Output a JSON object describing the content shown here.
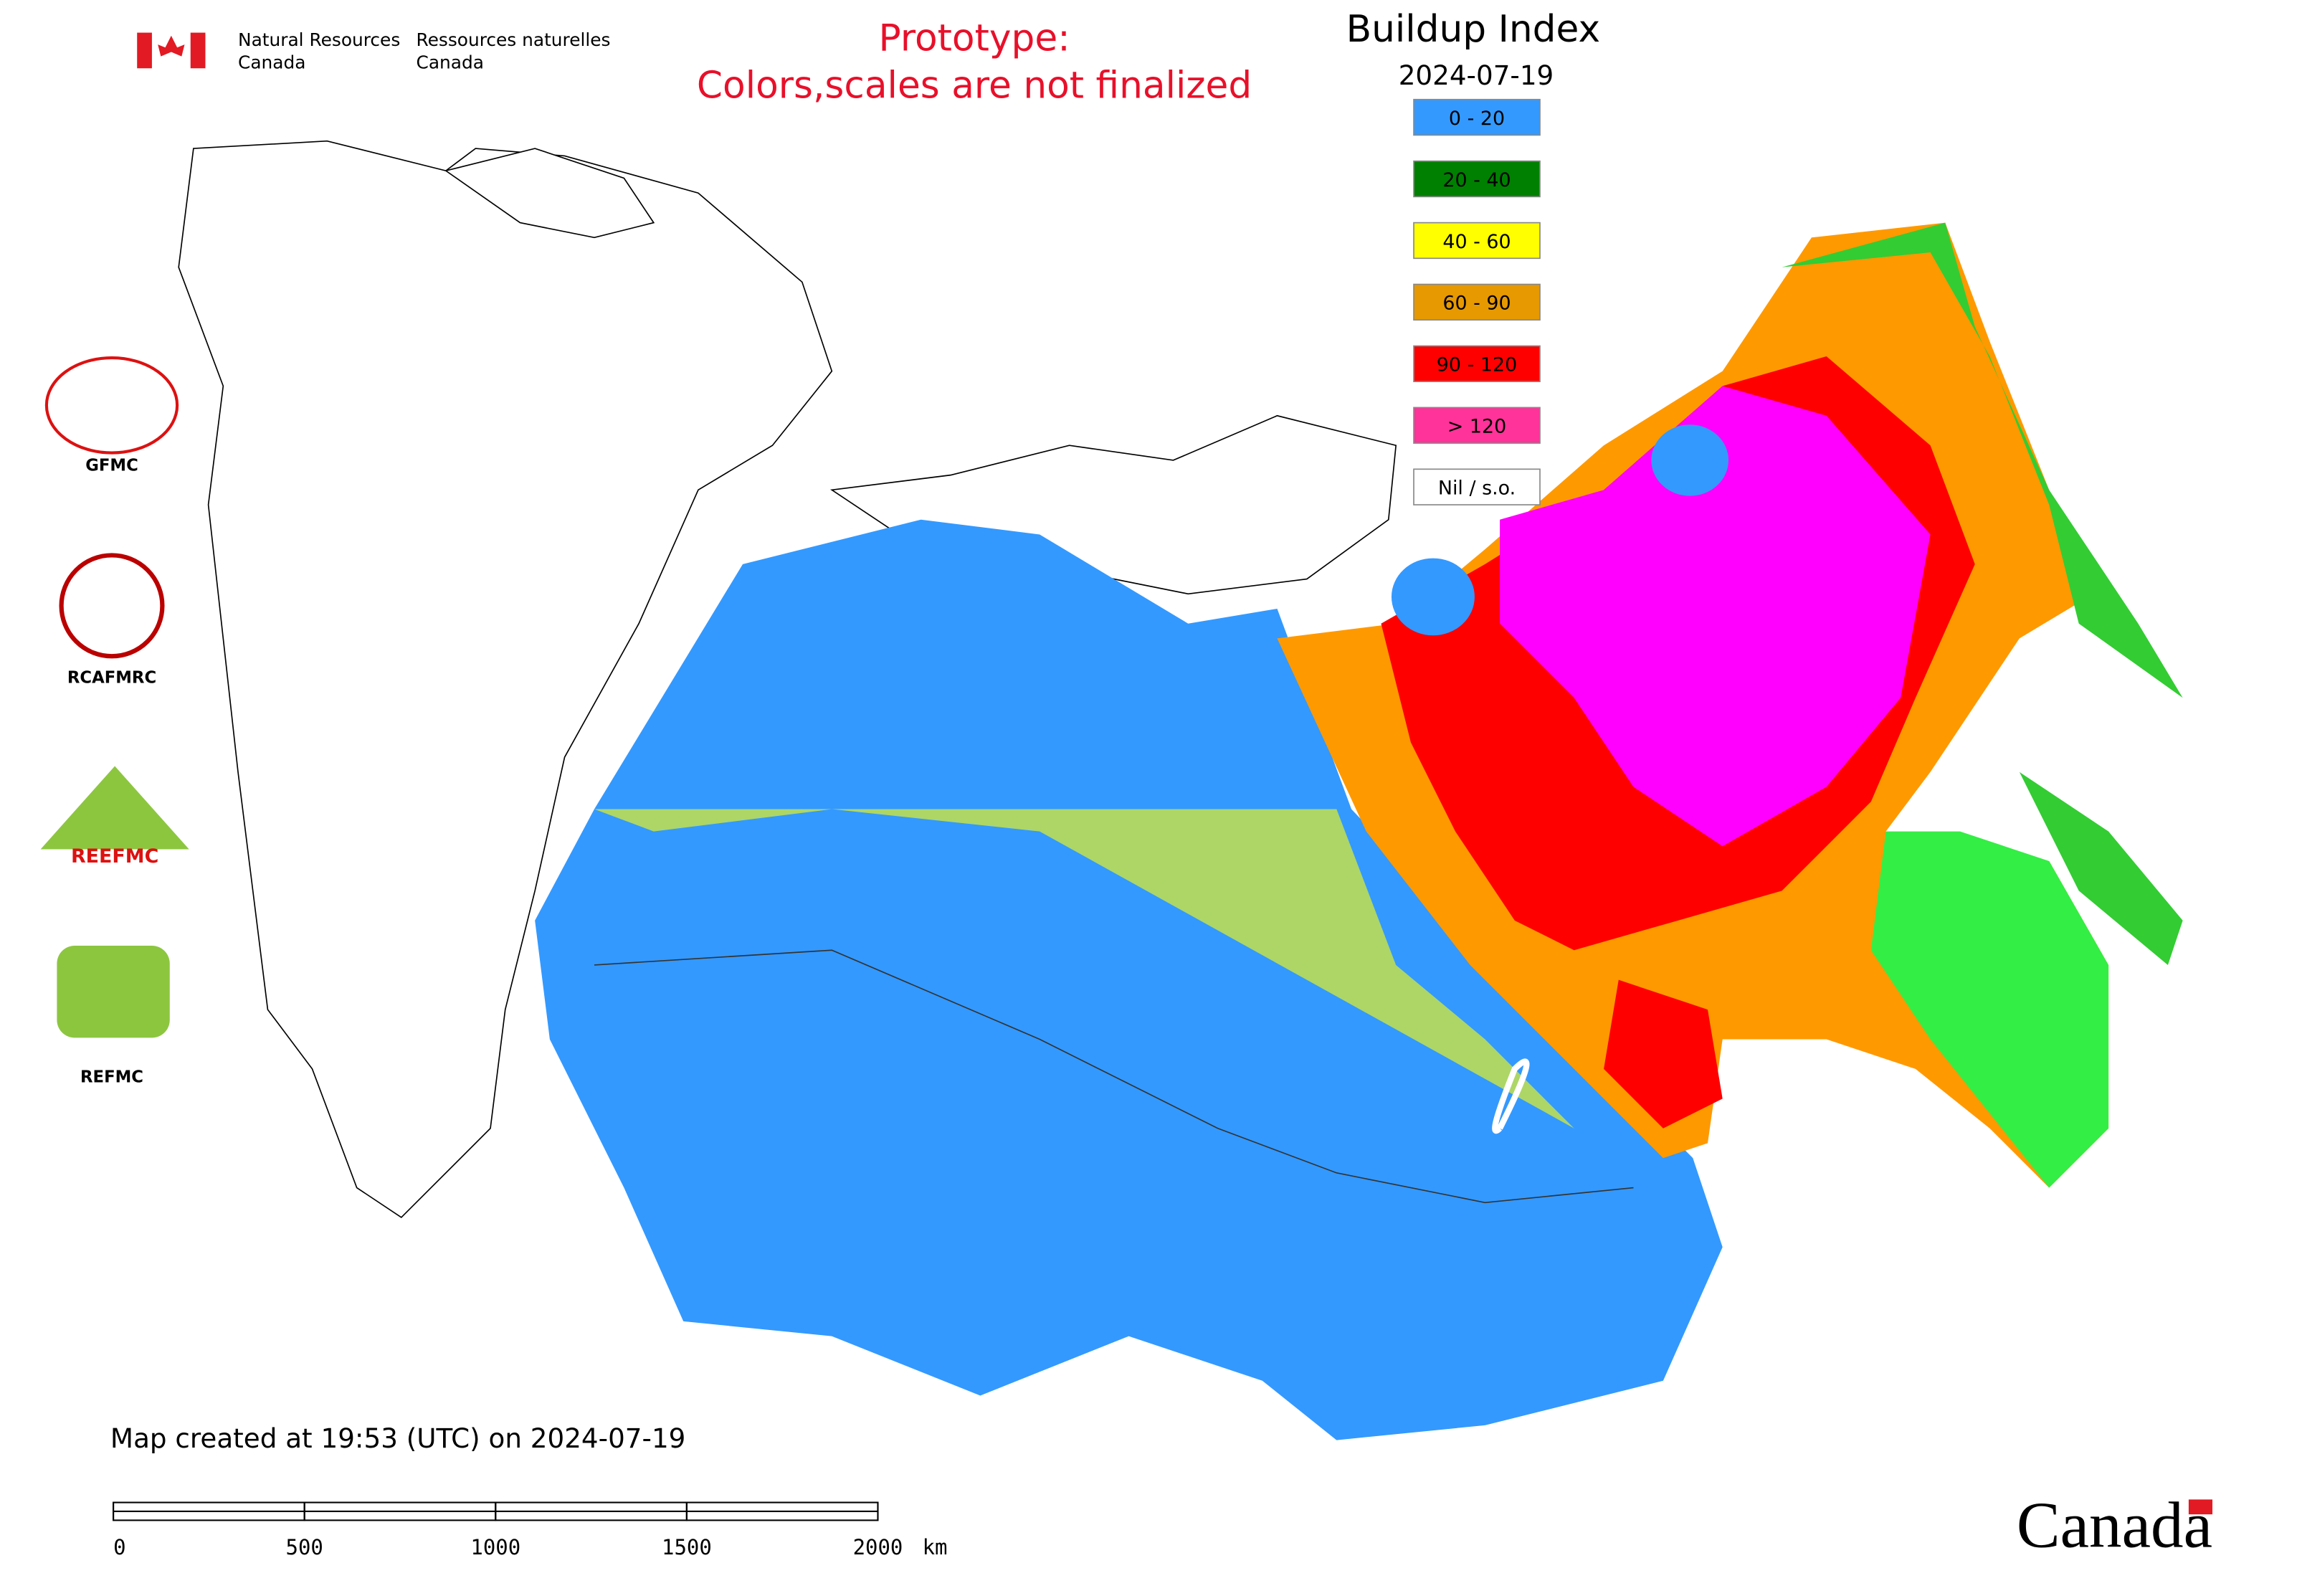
{
  "header": {
    "org_en_1": "Natural Resources",
    "org_en_2": "Canada",
    "org_fr_1": "Ressources naturelles",
    "org_fr_2": "Canada"
  },
  "notice": {
    "line1": "Prototype:",
    "line2": "Colors,scales are not finalized"
  },
  "title": "Buildup Index",
  "date": "2024-07-19",
  "legend": [
    {
      "label": "0 - 20",
      "color": "#3399ff"
    },
    {
      "label": "20 - 40",
      "color": "#008000"
    },
    {
      "label": "40 - 60",
      "color": "#ffff00"
    },
    {
      "label": "60 - 90",
      "color": "#e69900"
    },
    {
      "label": "90 - 120",
      "color": "#ff0000"
    },
    {
      "label": "> 120",
      "color": "#ff3399"
    },
    {
      "label": "Nil / s.o.",
      "color": "#ffffff"
    }
  ],
  "logos": [
    "GFMC",
    "RCAFMRC",
    "REEFMC",
    "REFMC"
  ],
  "footer": {
    "created": "Map created at 19:53 (UTC) on 2024-07-19",
    "wordmark": "Canada"
  },
  "scale_bar": {
    "ticks": [
      0,
      500,
      1000,
      1500,
      2000
    ],
    "unit": "km"
  }
}
